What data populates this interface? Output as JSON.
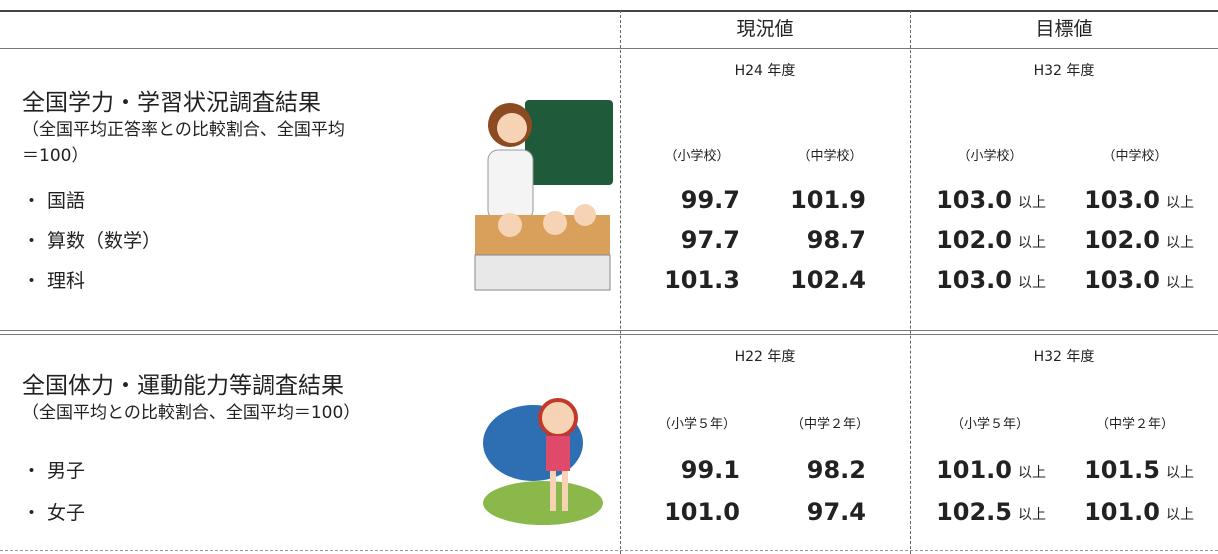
{
  "header": {
    "current": "現況値",
    "target": "目標値"
  },
  "qualifier": "以上",
  "sections": [
    {
      "title": "全国学力・学習状況調査結果",
      "note": [
        "（全国平均正答率との比較割合、全国平均",
        "＝100）"
      ],
      "current_year": "H24 年度",
      "target_year": "H32 年度",
      "current_groups": [
        "（小学校）",
        "（中学校）"
      ],
      "target_groups": [
        "（小学校）",
        "（中学校）"
      ],
      "rows": [
        {
          "label": "・ 国語",
          "current": [
            "99.7",
            "101.9"
          ],
          "target": [
            "103.0",
            "103.0"
          ]
        },
        {
          "label": "・ 算数（数学）",
          "current": [
            "97.7",
            "98.7"
          ],
          "target": [
            "102.0",
            "102.0"
          ]
        },
        {
          "label": "・ 理科",
          "current": [
            "101.3",
            "102.4"
          ],
          "target": [
            "103.0",
            "103.0"
          ]
        }
      ]
    },
    {
      "title": "全国体力・運動能力等調査結果",
      "note": [
        "（全国平均との比較割合、全国平均＝100）"
      ],
      "current_year": "H22 年度",
      "target_year": "H32 年度",
      "current_groups": [
        "（小学５年）",
        "（中学２年）"
      ],
      "target_groups": [
        "（小学５年）",
        "（中学２年）"
      ],
      "rows": [
        {
          "label": "・ 男子",
          "current": [
            "99.1",
            "98.2"
          ],
          "target": [
            "101.0",
            "101.5"
          ]
        },
        {
          "label": "・ 女子",
          "current": [
            "101.0",
            "97.4"
          ],
          "target": [
            "102.5",
            "101.0"
          ]
        }
      ]
    }
  ]
}
